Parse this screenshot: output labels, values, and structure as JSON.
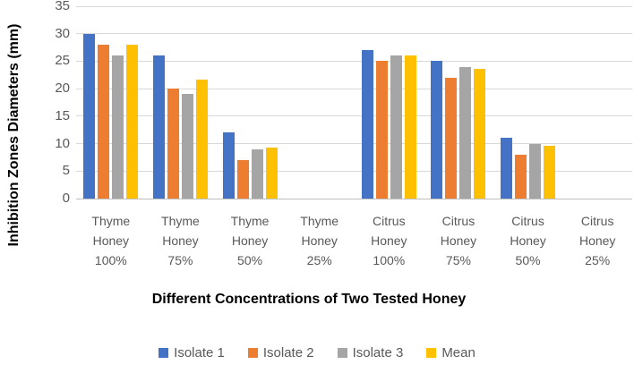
{
  "chart_data": {
    "type": "bar",
    "title": "",
    "xlabel": "Different Concentrations of Two Tested Honey",
    "ylabel": "Inhibition Zones Diameters (mm)",
    "ylim": [
      0,
      35
    ],
    "yticks": [
      0,
      5,
      10,
      15,
      20,
      25,
      30,
      35
    ],
    "grid": true,
    "legend_position": "bottom",
    "categories": [
      "Thyme Honey 100%",
      "Thyme Honey 75%",
      "Thyme Honey 50%",
      "Thyme Honey 25%",
      "Citrus Honey 100%",
      "Citrus Honey 75%",
      "Citrus Honey 50%",
      "Citrus Honey 25%"
    ],
    "series": [
      {
        "name": "Isolate 1",
        "color": "#4472C4",
        "values": [
          30,
          26,
          12,
          0,
          27,
          25,
          11,
          0
        ]
      },
      {
        "name": "Isolate 2",
        "color": "#ED7D31",
        "values": [
          28,
          20,
          7,
          0,
          25,
          22,
          8,
          0
        ]
      },
      {
        "name": "Isolate 3",
        "color": "#A5A5A5",
        "values": [
          26,
          19,
          9,
          0,
          26,
          24,
          10,
          0
        ]
      },
      {
        "name": "Mean",
        "color": "#FFC000",
        "values": [
          28,
          21.67,
          9.33,
          0,
          26,
          23.67,
          9.67,
          0
        ]
      }
    ]
  },
  "colors": {
    "gridline": "#D9D9D9",
    "axis_line": "#BFBFBF",
    "tick_label": "#595959",
    "category_label": "#595959",
    "axis_title": "#000000",
    "background": "#FFFFFF"
  }
}
